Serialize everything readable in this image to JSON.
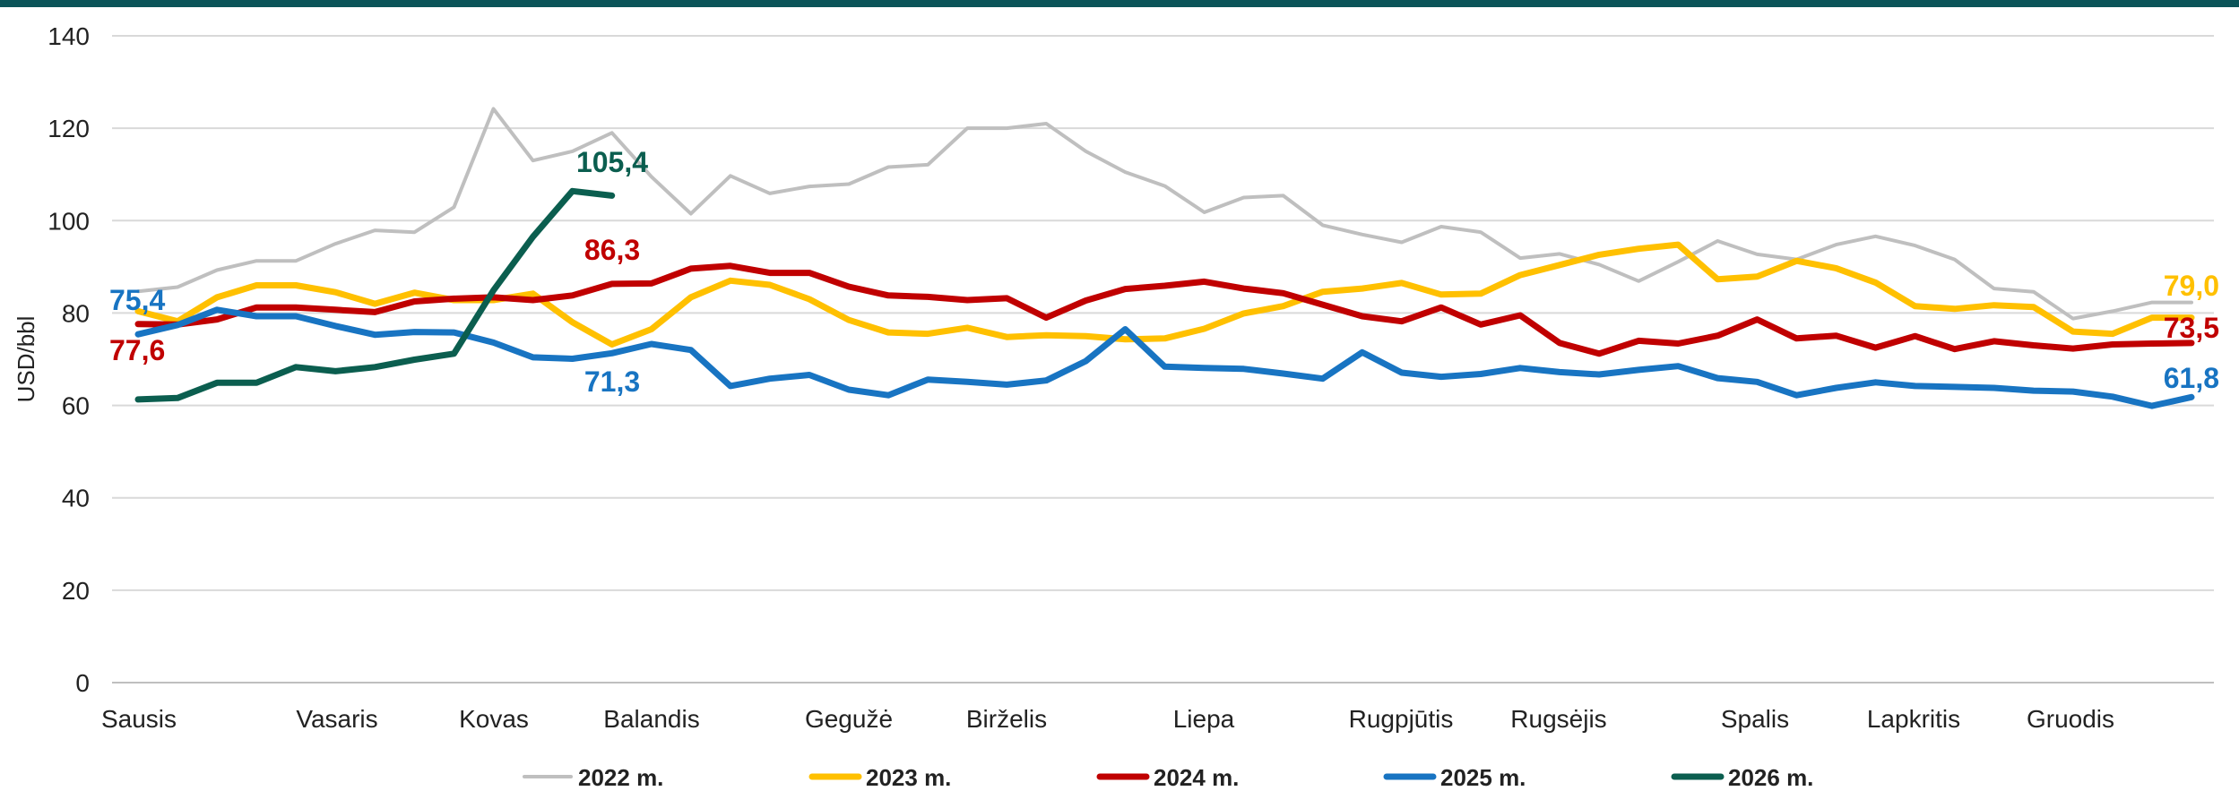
{
  "chart_data": {
    "type": "line",
    "ylabel": "USD/bbl",
    "ylim": [
      0,
      140
    ],
    "y_ticks": [
      "0",
      "20",
      "40",
      "60",
      "80",
      "100",
      "120",
      "140"
    ],
    "grid": true,
    "legend_position": "bottom",
    "month_labels": [
      "Sausis",
      "Vasaris",
      "Kovas",
      "Balandis",
      "Gegužė",
      "Birželis",
      "Liepa",
      "Rugpjūtis",
      "Rugsėjis",
      "Spalis",
      "Lapkritis",
      "Gruodis"
    ],
    "week_count": 54,
    "series": [
      {
        "name": "2022 m.",
        "color": "#bfbfbf",
        "values": [
          84.7,
          85.6,
          89.3,
          91.3,
          91.3,
          95.0,
          97.9,
          97.5,
          102.9,
          124.2,
          113.0,
          115.0,
          119.0,
          109.5,
          101.5,
          109.7,
          105.9,
          107.4,
          107.9,
          111.6,
          112.1,
          120.0,
          120.0,
          121.0,
          115.0,
          110.5,
          107.5,
          101.8,
          105.0,
          105.4,
          99.0,
          97.0,
          95.3,
          98.7,
          97.5,
          91.9,
          92.8,
          90.5,
          86.9,
          91.1,
          95.6,
          92.7,
          91.6,
          94.8,
          96.6,
          94.6,
          91.6,
          85.3,
          84.6,
          78.8,
          80.4,
          82.3,
          82.3
        ],
        "end_label": ""
      },
      {
        "name": "2023 m.",
        "color": "#ffc000",
        "values": [
          80.4,
          78.2,
          83.4,
          86.0,
          86.0,
          84.5,
          82.0,
          84.4,
          82.8,
          82.8,
          84.2,
          78.0,
          73.2,
          76.5,
          83.4,
          87.0,
          86.1,
          83.0,
          78.5,
          75.8,
          75.5,
          76.8,
          74.8,
          75.2,
          75.0,
          74.3,
          74.5,
          76.6,
          79.9,
          81.5,
          84.6,
          85.3,
          86.5,
          84.0,
          84.2,
          88.2,
          90.4,
          92.6,
          93.9,
          94.8,
          87.3,
          87.9,
          91.3,
          89.7,
          86.6,
          81.5,
          80.9,
          81.7,
          81.3,
          76.0,
          75.5,
          79.0,
          79.0
        ],
        "end_label": "79,0"
      },
      {
        "name": "2024 m.",
        "color": "#c00000",
        "values": [
          77.6,
          77.5,
          78.6,
          81.2,
          81.2,
          80.7,
          80.2,
          82.5,
          83.1,
          83.4,
          82.8,
          83.8,
          86.3,
          86.4,
          89.6,
          90.2,
          88.7,
          88.7,
          85.7,
          83.8,
          83.5,
          82.8,
          83.2,
          79.0,
          82.7,
          85.2,
          85.9,
          86.8,
          85.3,
          84.3,
          81.8,
          79.3,
          78.2,
          81.2,
          77.5,
          79.5,
          73.5,
          71.2,
          74.0,
          73.4,
          75.1,
          78.6,
          74.5,
          75.1,
          72.5,
          75.0,
          72.2,
          73.9,
          73.0,
          72.3,
          73.2,
          73.4,
          73.5
        ],
        "end_label": "73,5"
      },
      {
        "name": "2025 m.",
        "color": "#1874c2",
        "values": [
          75.4,
          77.4,
          80.7,
          79.3,
          79.3,
          77.2,
          75.3,
          75.9,
          75.8,
          73.6,
          70.4,
          70.1,
          71.3,
          73.3,
          72.0,
          64.2,
          65.8,
          66.6,
          63.4,
          62.2,
          65.6,
          65.1,
          64.5,
          65.4,
          69.6,
          76.5,
          68.4,
          68.1,
          67.9,
          66.9,
          65.8,
          71.5,
          67.1,
          66.2,
          66.8,
          68.1,
          67.2,
          66.7,
          67.7,
          68.5,
          65.9,
          65.1,
          62.2,
          63.8,
          65.0,
          64.2,
          64.0,
          63.8,
          63.2,
          63.0,
          61.9,
          59.9,
          61.8
        ],
        "end_label": "61,8"
      },
      {
        "name": "2026 m.",
        "color": "#0b5e4f",
        "values": [
          61.3,
          61.6,
          64.9,
          64.9,
          68.3,
          67.4,
          68.3,
          69.9,
          71.2,
          84.9,
          96.5,
          106.4,
          105.4
        ],
        "end_label": "105,4"
      }
    ],
    "annotations": [
      {
        "text": "75,4",
        "color": "#1874c2",
        "week": 0,
        "value": 75.4
      },
      {
        "text": "77,6",
        "color": "#c00000",
        "week": 0,
        "value": 77.6
      },
      {
        "text": "105,4",
        "color": "#0b5e4f",
        "week": 12,
        "value": 105.4
      },
      {
        "text": "86,3",
        "color": "#c00000",
        "week": 12,
        "value": 86.3
      },
      {
        "text": "71,3",
        "color": "#1874c2",
        "week": 12,
        "value": 71.3
      },
      {
        "text": "79,0",
        "color": "#ffc000",
        "week": 52,
        "value": 79.0
      },
      {
        "text": "73,5",
        "color": "#c00000",
        "week": 52,
        "value": 73.5
      },
      {
        "text": "61,8",
        "color": "#1874c2",
        "week": 52,
        "value": 61.8
      }
    ]
  }
}
